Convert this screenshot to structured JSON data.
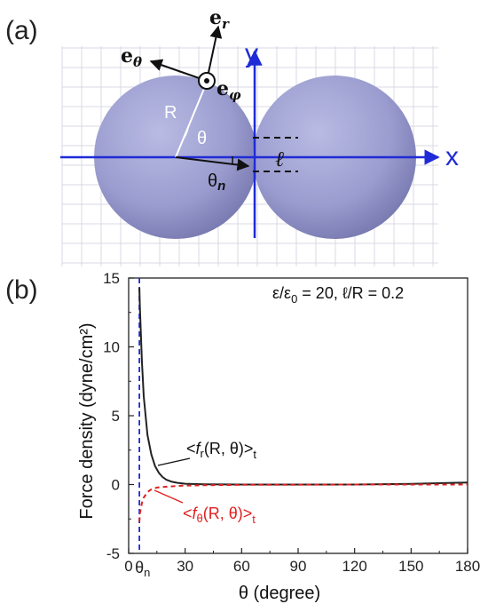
{
  "panel_a": {
    "label": "(a)",
    "vector_e_r": "e",
    "vector_e_r_sub": "r",
    "vector_e_theta": "e",
    "vector_e_theta_sub": "θ",
    "vector_e_phi": "e",
    "vector_e_phi_sub": "φ",
    "axis_x": "x",
    "axis_y": "y",
    "radius_label": "R",
    "theta_label": "θ",
    "theta_n_label": "θ",
    "theta_n_sub": "n",
    "gap_label": "ℓ",
    "colors": {
      "sphere": "#9a9ccf",
      "axis": "#1f2bd6",
      "grid": "#d9d9e6"
    }
  },
  "panel_b": {
    "label": "(b)",
    "params_text": "ε/ε",
    "params_eps_sub": "0",
    "params_rest": " = 20, ℓ/R = 0.2",
    "theta_n_tick": "θ",
    "theta_n_tick_sub": "n",
    "curve_label_r_prefix": "<",
    "curve_label_r_f": "f",
    "curve_label_r_sub": "r",
    "curve_label_r_suffix": "(R, θ)>",
    "curve_label_r_t": "t",
    "curve_label_t_prefix": "<",
    "curve_label_t_f": "f",
    "curve_label_t_sub": "θ",
    "curve_label_t_suffix": "(R, θ)>",
    "curve_label_t_t": "t"
  },
  "chart_data": {
    "type": "line",
    "xlabel": "θ (degree)",
    "ylabel": "Force density (dyne/cm²)",
    "xlim": [
      0,
      180
    ],
    "ylim": [
      -5,
      15
    ],
    "xticks": [
      0,
      30,
      60,
      90,
      120,
      150,
      180
    ],
    "yticks": [
      -5,
      0,
      5,
      10,
      15
    ],
    "theta_n": 5.7,
    "series": [
      {
        "name": "<fr(R, θ)>t",
        "color": "#222222",
        "style": "solid",
        "x": [
          5.7,
          6,
          7,
          8,
          10,
          12,
          14,
          16,
          18,
          20,
          23,
          26,
          30,
          40,
          60,
          90,
          120,
          150,
          180
        ],
        "y": [
          14.3,
          12.8,
          9.0,
          6.4,
          3.6,
          2.2,
          1.35,
          0.85,
          0.55,
          0.35,
          0.2,
          0.12,
          0.06,
          0.02,
          0.0,
          0.0,
          0.0,
          0.05,
          0.15
        ]
      },
      {
        "name": "<fθ(R, θ)>t",
        "color": "#e02020",
        "style": "dashed",
        "x": [
          5.7,
          6,
          7,
          8,
          10,
          12,
          15,
          18,
          22,
          26,
          30,
          40,
          60,
          90,
          120,
          150,
          180
        ],
        "y": [
          -2.7,
          -2.1,
          -1.35,
          -0.95,
          -0.55,
          -0.35,
          -0.22,
          -0.18,
          -0.14,
          -0.1,
          -0.08,
          -0.05,
          -0.02,
          -0.01,
          0.0,
          0.0,
          0.0
        ]
      }
    ]
  }
}
